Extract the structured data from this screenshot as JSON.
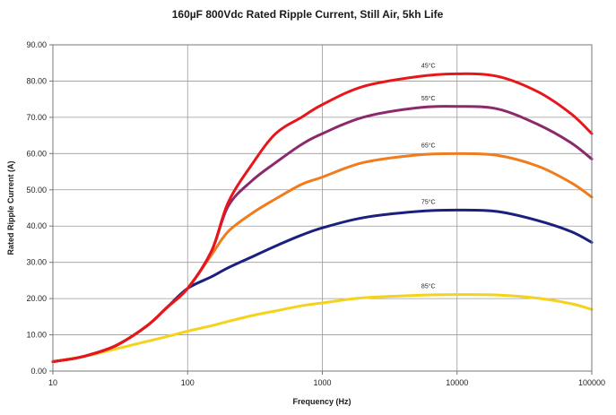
{
  "chart_data": {
    "type": "line",
    "title": "160µF 800Vdc Rated Ripple Current, Still Air, 5kh Life",
    "xlabel": "Frequency (Hz)",
    "ylabel": "Rated Ripple Current (A)",
    "xscale": "log",
    "xlim": [
      10,
      100000
    ],
    "ylim": [
      0,
      90
    ],
    "x_ticks": [
      "10",
      "100",
      "1000",
      "10000",
      "100000"
    ],
    "y_ticks": [
      "0.00",
      "10.00",
      "20.00",
      "30.00",
      "40.00",
      "50.00",
      "60.00",
      "70.00",
      "80.00",
      "90.00"
    ],
    "grid": true,
    "legend": "none",
    "series": [
      {
        "name": "45°C",
        "color": "#e8161b",
        "x": [
          10,
          15,
          20,
          30,
          50,
          70,
          100,
          150,
          200,
          300,
          450,
          700,
          1000,
          2000,
          5000,
          10000,
          20000,
          40000,
          70000,
          100000
        ],
        "values": [
          2.6,
          3.6,
          4.8,
          7.2,
          12.5,
          17.5,
          22.8,
          33,
          46.5,
          57,
          65.5,
          70,
          73.5,
          78.5,
          81.2,
          82,
          81.3,
          77,
          71,
          65.5
        ]
      },
      {
        "name": "55°C",
        "color": "#8b2a6b",
        "x": [
          10,
          15,
          20,
          30,
          50,
          70,
          100,
          150,
          200,
          300,
          450,
          700,
          1000,
          2000,
          5000,
          10000,
          20000,
          40000,
          70000,
          100000
        ],
        "values": [
          2.6,
          3.6,
          4.8,
          7.2,
          12.5,
          17.5,
          22.8,
          33,
          45.5,
          52.5,
          57.5,
          62.5,
          65.5,
          70,
          72.6,
          73,
          72.3,
          68,
          63,
          58.5
        ]
      },
      {
        "name": "65°C",
        "color": "#f07c1e",
        "x": [
          10,
          15,
          20,
          30,
          50,
          70,
          100,
          150,
          200,
          300,
          450,
          700,
          1000,
          2000,
          5000,
          10000,
          20000,
          40000,
          70000,
          100000
        ],
        "values": [
          2.6,
          3.6,
          4.8,
          7.2,
          12.5,
          17.5,
          22.8,
          32,
          38.5,
          43.5,
          47.5,
          51.5,
          53.5,
          57.5,
          59.6,
          60,
          59.5,
          56.5,
          52,
          48
        ]
      },
      {
        "name": "75°C",
        "color": "#1b1f7e",
        "x": [
          10,
          15,
          20,
          30,
          50,
          70,
          100,
          150,
          200,
          300,
          450,
          700,
          1000,
          2000,
          5000,
          10000,
          20000,
          40000,
          70000,
          100000
        ],
        "values": [
          2.6,
          3.6,
          4.8,
          7.2,
          12.5,
          17.5,
          22.8,
          26,
          28.5,
          31.5,
          34.5,
          37.5,
          39.5,
          42.3,
          44,
          44.4,
          44,
          41.5,
          38.5,
          35.5
        ]
      },
      {
        "name": "85°C",
        "color": "#f5d21c",
        "x": [
          10,
          15,
          20,
          30,
          50,
          70,
          100,
          150,
          200,
          300,
          450,
          700,
          1000,
          2000,
          5000,
          10000,
          20000,
          40000,
          70000,
          100000
        ],
        "values": [
          2.6,
          3.7,
          4.6,
          6.2,
          8.2,
          9.5,
          11,
          12.5,
          13.7,
          15.3,
          16.6,
          18,
          18.8,
          20.2,
          20.9,
          21.1,
          21,
          20.1,
          18.6,
          17
        ]
      }
    ]
  }
}
